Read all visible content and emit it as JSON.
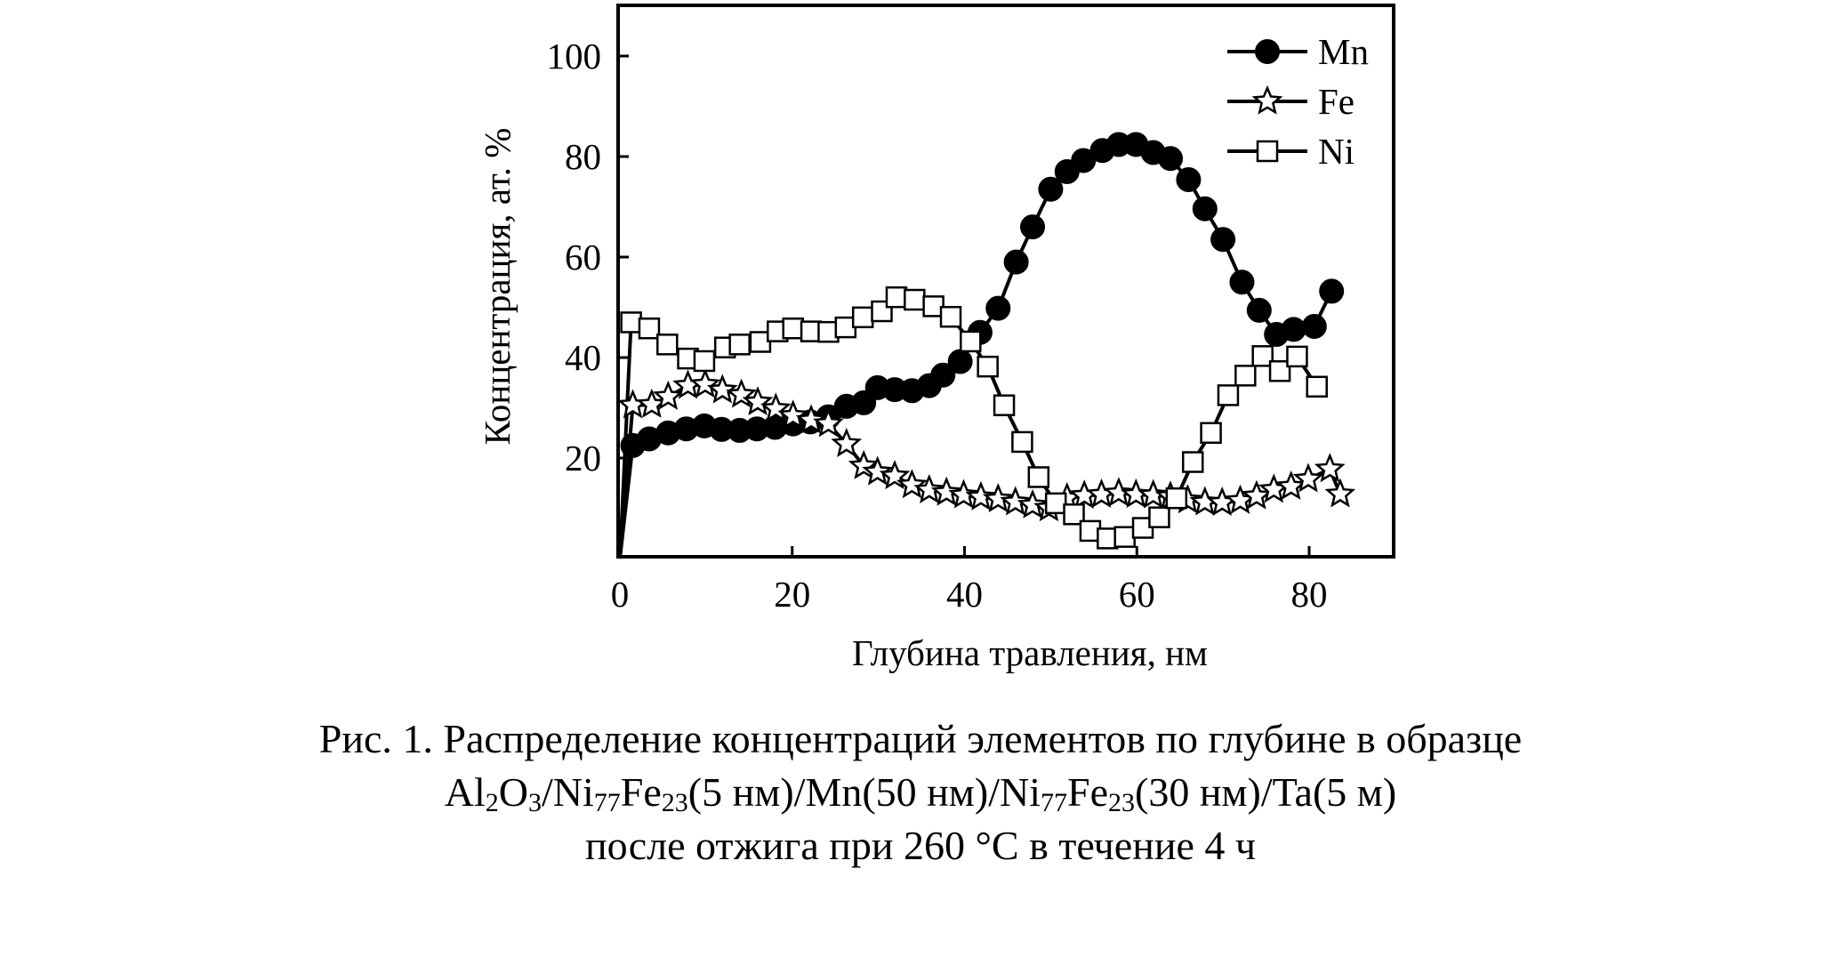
{
  "chart_data": {
    "type": "line",
    "xlabel": "Глубина травления, нм",
    "ylabel": "Концентрация, ат. %",
    "xlim": [
      0,
      88
    ],
    "ylim": [
      0,
      110
    ],
    "x_ticks": [
      0,
      20,
      40,
      60,
      80
    ],
    "y_ticks": [
      20,
      40,
      60,
      80,
      100
    ],
    "grid": false,
    "legend_position": "top-right",
    "series": [
      {
        "name": "Mn",
        "marker": "filled-circle",
        "color": "#000000",
        "points": [
          [
            0,
            0
          ],
          [
            1.5,
            22.5
          ],
          [
            3.4,
            23.8
          ],
          [
            5.6,
            25
          ],
          [
            7.7,
            25.8
          ],
          [
            9.8,
            26.4
          ],
          [
            11.8,
            25.7
          ],
          [
            13.9,
            25.5
          ],
          [
            15.9,
            25.8
          ],
          [
            18,
            26.1
          ],
          [
            20.1,
            26.8
          ],
          [
            22.1,
            27.2
          ],
          [
            24.2,
            28.2
          ],
          [
            26.3,
            30.3
          ],
          [
            28.3,
            31
          ],
          [
            29.9,
            34
          ],
          [
            31.9,
            33.6
          ],
          [
            33.9,
            33.4
          ],
          [
            35.9,
            34.4
          ],
          [
            37.5,
            36.5
          ],
          [
            39.5,
            39.2
          ],
          [
            41.8,
            45
          ],
          [
            43.9,
            49.8
          ],
          [
            46,
            59
          ],
          [
            47.9,
            66
          ],
          [
            50,
            73.5
          ],
          [
            51.9,
            77
          ],
          [
            53.8,
            79.2
          ],
          [
            56,
            81.2
          ],
          [
            57.9,
            82.4
          ],
          [
            59.9,
            82.4
          ],
          [
            61.9,
            80.8
          ],
          [
            63.9,
            79.6
          ],
          [
            66,
            75.4
          ],
          [
            67.9,
            69.6
          ],
          [
            70,
            63.5
          ],
          [
            72.2,
            55
          ],
          [
            74.2,
            49.4
          ],
          [
            76.2,
            44.6
          ],
          [
            78.2,
            45.6
          ],
          [
            80.6,
            46.2
          ],
          [
            82.6,
            53.2
          ]
        ]
      },
      {
        "name": "Fe",
        "marker": "open-star",
        "color": "#000000",
        "points": [
          [
            0,
            0
          ],
          [
            1.5,
            30.5
          ],
          [
            3.7,
            30.6
          ],
          [
            5.6,
            32.2
          ],
          [
            7.9,
            34.4
          ],
          [
            9.9,
            34.6
          ],
          [
            11.9,
            33.5
          ],
          [
            14.1,
            32.6
          ],
          [
            16,
            31.1
          ],
          [
            18.1,
            29.8
          ],
          [
            20.1,
            28.4
          ],
          [
            22.2,
            27.5
          ],
          [
            24.2,
            26.8
          ],
          [
            26.3,
            22.8
          ],
          [
            28.3,
            18.4
          ],
          [
            29.9,
            17.2
          ],
          [
            31.9,
            16.4
          ],
          [
            33.9,
            14.6
          ],
          [
            35.9,
            13.6
          ],
          [
            37.9,
            13.1
          ],
          [
            39.9,
            12.6
          ],
          [
            41.9,
            12.2
          ],
          [
            43.9,
            11.8
          ],
          [
            45.9,
            11.2
          ],
          [
            47.9,
            10.6
          ],
          [
            49.8,
            10
          ],
          [
            51.9,
            12
          ],
          [
            53.9,
            12.5
          ],
          [
            55.9,
            12.7
          ],
          [
            57.9,
            13
          ],
          [
            59.9,
            12.7
          ],
          [
            61.9,
            12.6
          ],
          [
            63.9,
            12.3
          ],
          [
            65.9,
            11.6
          ],
          [
            67.9,
            11.2
          ],
          [
            69.9,
            11.1
          ],
          [
            72,
            11.5
          ],
          [
            73.9,
            12.4
          ],
          [
            75.9,
            13.7
          ],
          [
            77.9,
            14.3
          ],
          [
            79.9,
            15.8
          ],
          [
            82.4,
            17.8
          ],
          [
            83.6,
            12.8
          ]
        ]
      },
      {
        "name": "Ni",
        "marker": "open-square",
        "color": "#000000",
        "points": [
          [
            0,
            0
          ],
          [
            1.3,
            47
          ],
          [
            3.4,
            45.8
          ],
          [
            5.5,
            42.6
          ],
          [
            7.9,
            39.8
          ],
          [
            9.8,
            39.3
          ],
          [
            12.2,
            42
          ],
          [
            13.9,
            42.6
          ],
          [
            16.3,
            43.1
          ],
          [
            18.3,
            45.2
          ],
          [
            20.1,
            45.8
          ],
          [
            22.2,
            45.2
          ],
          [
            24.2,
            45.1
          ],
          [
            26.2,
            46
          ],
          [
            28.2,
            48
          ],
          [
            30.4,
            49.2
          ],
          [
            32.1,
            52
          ],
          [
            34.2,
            51.5
          ],
          [
            36.4,
            50.2
          ],
          [
            38.4,
            48.1
          ],
          [
            40.7,
            43.2
          ],
          [
            42.7,
            38.2
          ],
          [
            44.6,
            30.5
          ],
          [
            46.7,
            23.2
          ],
          [
            48.6,
            16.2
          ],
          [
            50.6,
            11
          ],
          [
            52.7,
            8.8
          ],
          [
            54.6,
            5.5
          ],
          [
            56.6,
            4
          ],
          [
            58.6,
            4.3
          ],
          [
            60.7,
            6.1
          ],
          [
            62.6,
            8.2
          ],
          [
            64.6,
            12
          ],
          [
            66.5,
            19.2
          ],
          [
            68.6,
            25
          ],
          [
            70.6,
            32.5
          ],
          [
            72.6,
            36.4
          ],
          [
            74.6,
            40.3
          ],
          [
            76.6,
            37.3
          ],
          [
            78.6,
            40.2
          ],
          [
            80.9,
            34.2
          ]
        ]
      }
    ]
  },
  "caption": {
    "line1": "Рис. 1. Распределение концентраций элементов по глубине в образце",
    "line2": {
      "t1": "Al",
      "s1": "2",
      "t2": "O",
      "s2": "3",
      "t3": "/Ni",
      "s3": "77",
      "t4": "Fe",
      "s4": "23",
      "t5": "(5 нм)/Mn(50 нм)/Ni",
      "s5": "77",
      "t6": "Fe",
      "s6": "23",
      "t7": "(30 нм)/Ta(5 м)"
    },
    "line3": "после отжига при 260 °C в течение 4 ч"
  }
}
